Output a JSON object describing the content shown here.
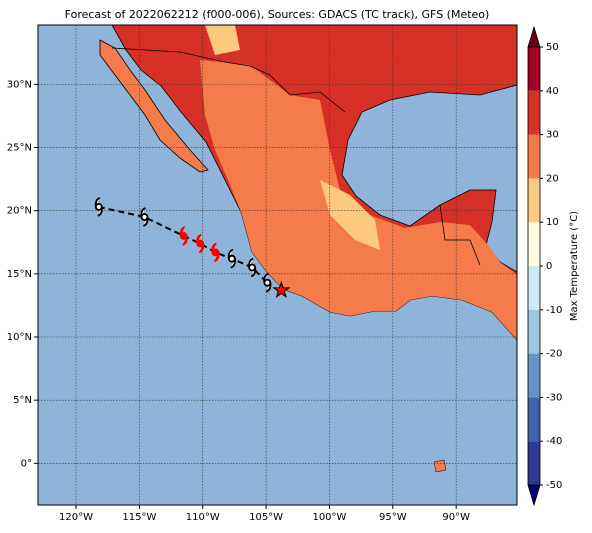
{
  "title": "Forecast of 2022062212 (f000-006), Sources: GDACS (TC track), GFS (Meteo)",
  "map": {
    "xlim": [
      -123,
      -85.2
    ],
    "ylim": [
      -3.3,
      34.7
    ],
    "xticks": [
      {
        "value": -120,
        "label": "120°W"
      },
      {
        "value": -115,
        "label": "115°W"
      },
      {
        "value": -110,
        "label": "110°W"
      },
      {
        "value": -105,
        "label": "105°W"
      },
      {
        "value": -100,
        "label": "100°W"
      },
      {
        "value": -95,
        "label": "95°W"
      },
      {
        "value": -90,
        "label": "90°W"
      }
    ],
    "yticks": [
      {
        "value": 0,
        "label": "0°"
      },
      {
        "value": 5,
        "label": "5°N"
      },
      {
        "value": 10,
        "label": "10°N"
      },
      {
        "value": 15,
        "label": "15°N"
      },
      {
        "value": 20,
        "label": "20°N"
      },
      {
        "value": 25,
        "label": "25°N"
      },
      {
        "value": 30,
        "label": "30°N"
      }
    ],
    "grid": true
  },
  "track": {
    "lon": [
      -118.2,
      -114.6,
      -111.5,
      -110.2,
      -109.0,
      -107.7,
      -106.1,
      -104.9
    ],
    "lat": [
      20.3,
      19.5,
      18.0,
      17.4,
      16.7,
      16.2,
      15.5,
      14.3
    ],
    "colors": [
      "black",
      "black",
      "red",
      "red",
      "red",
      "black",
      "black",
      "black"
    ]
  },
  "current_position": {
    "lon": -103.8,
    "lat": 13.7,
    "color": "red"
  },
  "colorbar": {
    "label": "Max Temperature (°C)",
    "ticks": [
      -50,
      -40,
      -30,
      -20,
      -10,
      0,
      10,
      20,
      30,
      40,
      50
    ],
    "colors": [
      "#2b3990",
      "#3f62a8",
      "#6694c6",
      "#9cc6e0",
      "#cfe8f2",
      "#fdfbe0",
      "#fdc97e",
      "#f57c4a",
      "#d73027",
      "#a50026"
    ],
    "under_color": "#08006e",
    "over_color": "#6b0018"
  }
}
